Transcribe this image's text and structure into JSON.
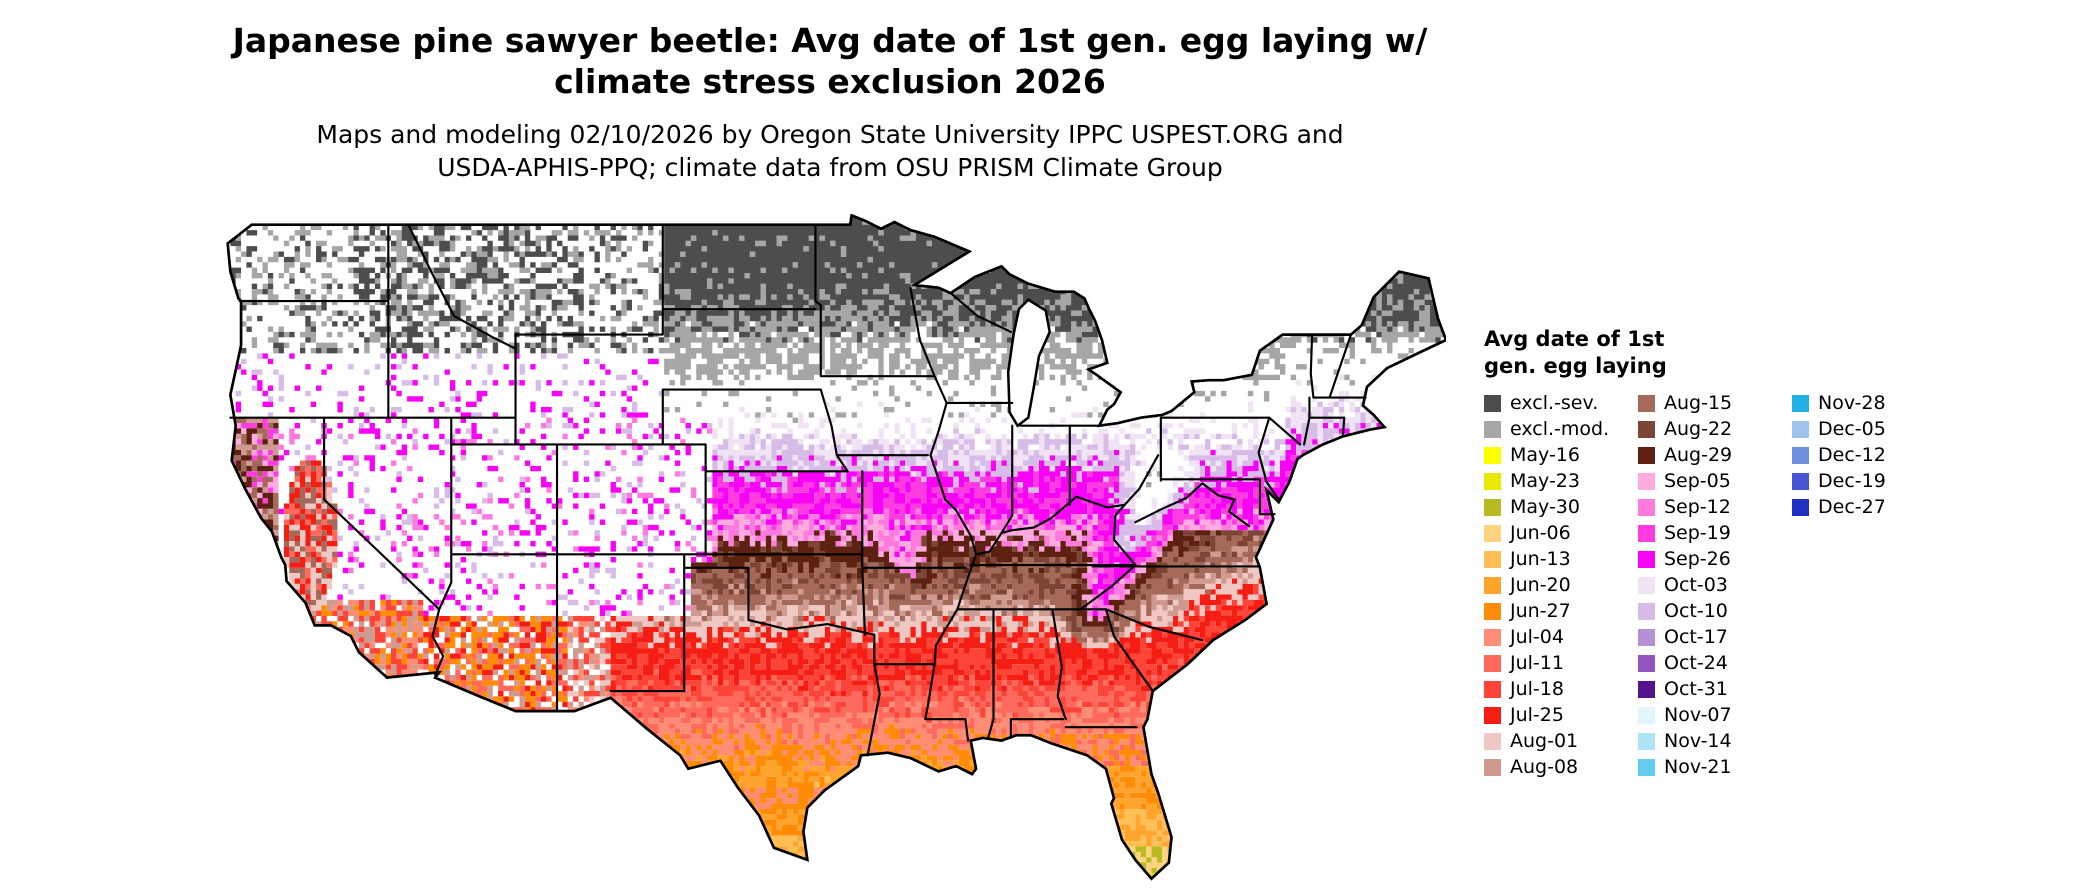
{
  "header": {
    "title_line1": "Japanese pine sawyer beetle: Avg date of 1st gen. egg laying w/",
    "title_line2": "climate stress exclusion 2026",
    "subtitle_line1": "Maps and modeling 02/10/2026 by Oregon State University IPPC USPEST.ORG and",
    "subtitle_line2": "USDA-APHIS-PPQ; climate data from OSU PRISM Climate Group"
  },
  "legend": {
    "title_line1": "Avg date of 1st",
    "title_line2": "gen. egg laying",
    "columns": [
      [
        {
          "label": "excl.-sev.",
          "color": "#4d4d4d"
        },
        {
          "label": "excl.-mod.",
          "color": "#a6a6a6"
        },
        {
          "label": "May-16",
          "color": "#ffff00"
        },
        {
          "label": "May-23",
          "color": "#e8e800"
        },
        {
          "label": "May-30",
          "color": "#b8bc22"
        },
        {
          "label": "Jun-06",
          "color": "#ffd37f"
        },
        {
          "label": "Jun-13",
          "color": "#ffbf57"
        },
        {
          "label": "Jun-20",
          "color": "#ffa52e"
        },
        {
          "label": "Jun-27",
          "color": "#ff8b07"
        },
        {
          "label": "Jul-04",
          "color": "#ff8d75"
        },
        {
          "label": "Jul-11",
          "color": "#ff6a5c"
        },
        {
          "label": "Jul-18",
          "color": "#fc4439"
        },
        {
          "label": "Jul-25",
          "color": "#f51e14"
        },
        {
          "label": "Aug-01",
          "color": "#f0c8c3"
        },
        {
          "label": "Aug-08",
          "color": "#cf9b91"
        }
      ],
      [
        {
          "label": "Aug-15",
          "color": "#a5695a"
        },
        {
          "label": "Aug-22",
          "color": "#7e4537"
        },
        {
          "label": "Aug-29",
          "color": "#5c2110"
        },
        {
          "label": "Sep-05",
          "color": "#ffabdf"
        },
        {
          "label": "Sep-12",
          "color": "#ff7ade"
        },
        {
          "label": "Sep-19",
          "color": "#fe3cdf"
        },
        {
          "label": "Sep-26",
          "color": "#f704f7"
        },
        {
          "label": "Oct-03",
          "color": "#f0e3f4"
        },
        {
          "label": "Oct-10",
          "color": "#d8bce8"
        },
        {
          "label": "Oct-17",
          "color": "#b78fd5"
        },
        {
          "label": "Oct-24",
          "color": "#9155bf"
        },
        {
          "label": "Oct-31",
          "color": "#54128c"
        },
        {
          "label": "Nov-07",
          "color": "#e2f4fc"
        },
        {
          "label": "Nov-14",
          "color": "#aee3f8"
        },
        {
          "label": "Nov-21",
          "color": "#64cbf0"
        }
      ],
      [
        {
          "label": "Nov-28",
          "color": "#22b1e6"
        },
        {
          "label": "Dec-05",
          "color": "#9fc2ee"
        },
        {
          "label": "Dec-12",
          "color": "#6e8ede"
        },
        {
          "label": "Dec-19",
          "color": "#4557d2"
        },
        {
          "label": "Dec-27",
          "color": "#1f2fc4"
        }
      ]
    ]
  },
  "map": {
    "no_data_color": "#ffffff",
    "border_color": "#000000"
  }
}
